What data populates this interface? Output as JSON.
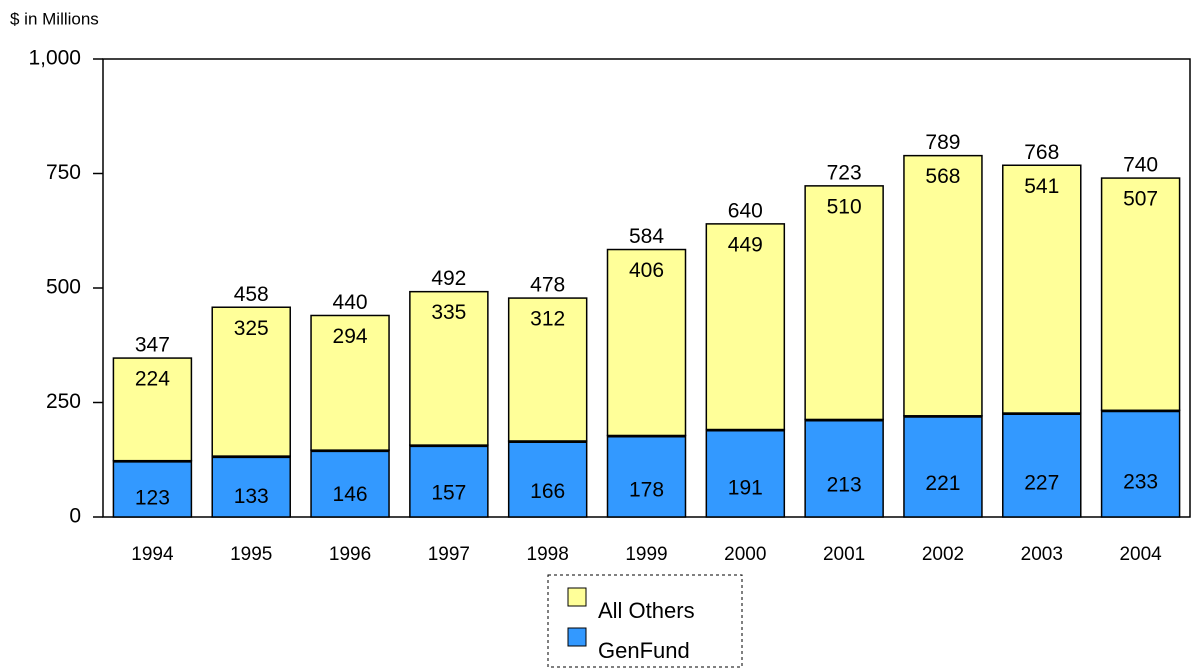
{
  "chart_data": {
    "type": "stacked_bar",
    "y_axis_label": "$ in Millions",
    "categories": [
      "1994",
      "1995",
      "1996",
      "1997",
      "1998",
      "1999",
      "2000",
      "2001",
      "2002",
      "2003",
      "2004"
    ],
    "series": [
      {
        "name": "GenFund",
        "color": "#3399ff",
        "values": [
          123,
          133,
          146,
          157,
          166,
          178,
          191,
          213,
          221,
          227,
          233
        ]
      },
      {
        "name": "All Others",
        "color": "#ffff99",
        "values": [
          224,
          325,
          294,
          335,
          312,
          406,
          449,
          510,
          568,
          541,
          507
        ]
      }
    ],
    "totals": [
      347,
      458,
      440,
      492,
      478,
      584,
      640,
      723,
      789,
      768,
      740
    ],
    "ylim": [
      0,
      1000
    ],
    "yticks": [
      0,
      250,
      500,
      750,
      {
        "value": 1000,
        "label": "1,000"
      }
    ],
    "legend": "bottom"
  }
}
